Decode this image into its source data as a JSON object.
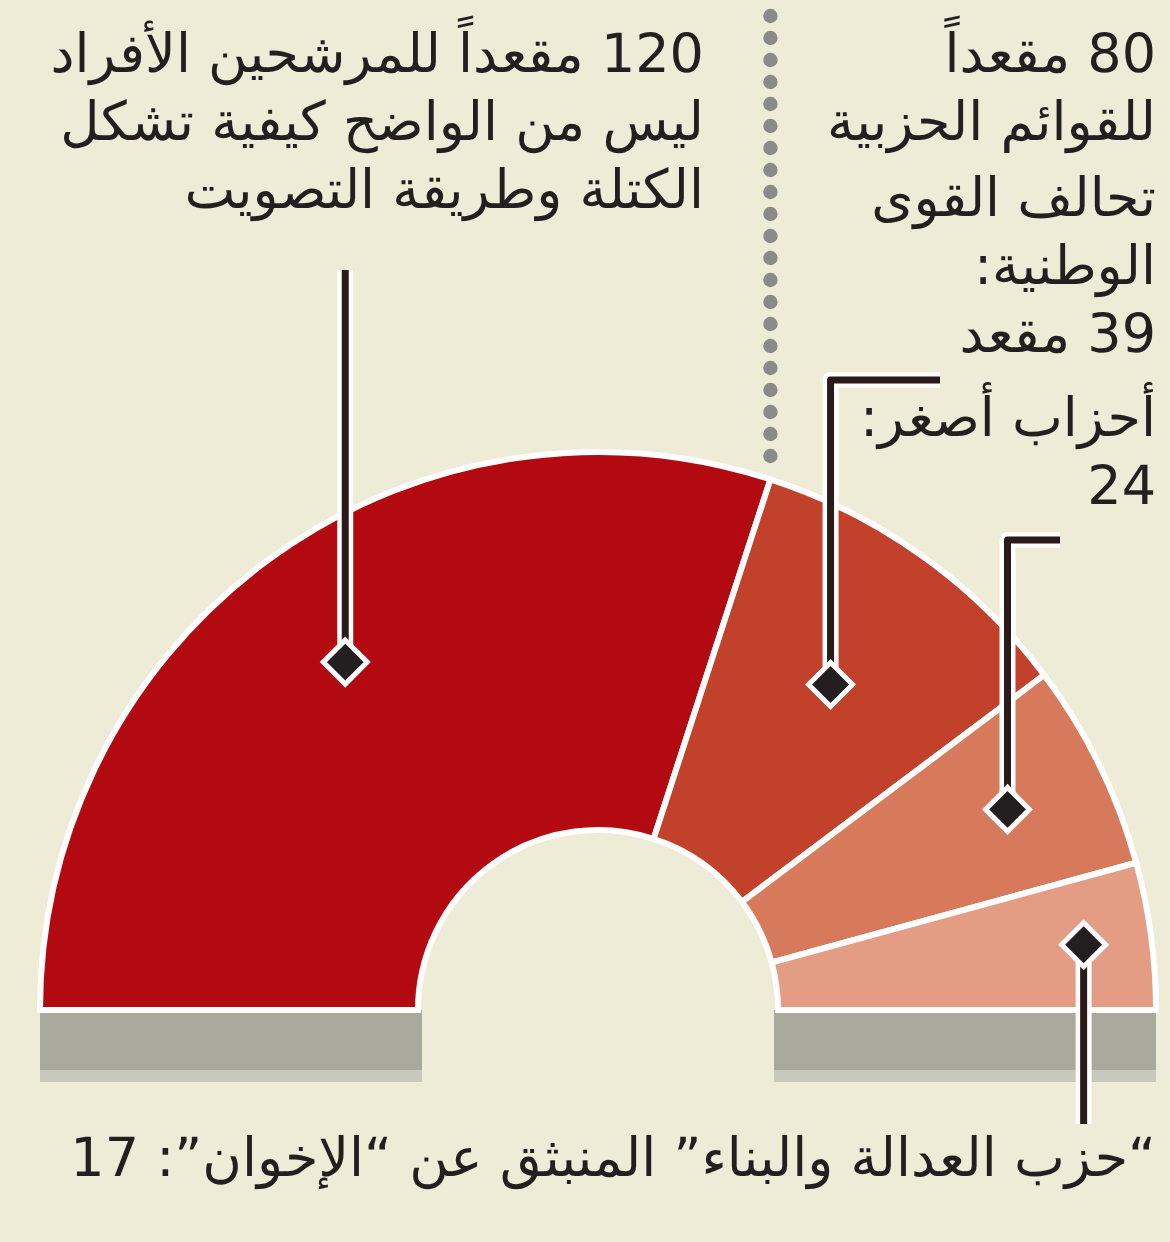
{
  "chart_data": {
    "type": "donut",
    "categories": [
      "120 مقعداً للمرشحين الأفراد\nليس من الواضح كيفية تشكل\nالكتلة وطريقة التصويت",
      "تحالف القوى\nالوطنية:\n39 مقعد",
      "أحزاب أصغر:\n24",
      "“حزب العدالة والبناء” المنبثق عن “الإخوان”: 17"
    ],
    "values": [
      120,
      39,
      24,
      17
    ],
    "colors": [
      "#b20a10",
      "#c1412b",
      "#d77a5c",
      "#e59c85"
    ],
    "annotations": [
      "80 مقعداً\nللقوائم الحزبية"
    ]
  }
}
